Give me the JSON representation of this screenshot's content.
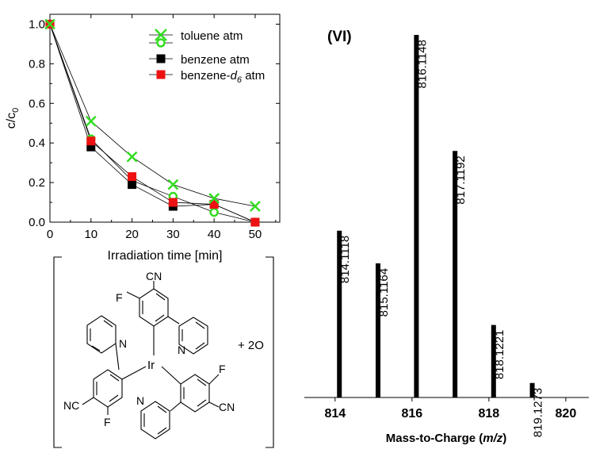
{
  "chart_data": [
    {
      "type": "line",
      "xlabel": "Irradiation time [min]",
      "ylabel": "c/c",
      "ylabel_sub": "0",
      "xlim": [
        0,
        56
      ],
      "ylim": [
        0,
        1.05
      ],
      "xticks": [
        0,
        10,
        20,
        30,
        40,
        50
      ],
      "yticks": [
        "0.0",
        "0.2",
        "0.4",
        "0.6",
        "0.8",
        "1.0"
      ],
      "x": [
        0,
        10,
        20,
        30,
        40,
        50
      ],
      "series": [
        {
          "name": "toluene atm",
          "marker": "x",
          "color": "#33dd22",
          "values": [
            1.0,
            0.51,
            0.33,
            0.19,
            0.12,
            0.08
          ]
        },
        {
          "name": "",
          "marker": "open-circle",
          "color": "#33dd22",
          "values": [
            1.0,
            0.42,
            0.21,
            0.13,
            0.05,
            0.0
          ]
        },
        {
          "name": "benzene atm",
          "marker": "square",
          "color": "#000000",
          "values": [
            1.0,
            0.38,
            0.19,
            0.08,
            0.09,
            0.0
          ]
        },
        {
          "name": "benzene-",
          "name_italic": "d",
          "name_sub": "6",
          "name_suffix": " atm",
          "marker": "square",
          "color": "#ee1111",
          "values": [
            1.0,
            0.41,
            0.23,
            0.1,
            0.09,
            0.0
          ]
        }
      ]
    },
    {
      "type": "bar",
      "title": "(VI)",
      "xlabel_prefix": "Mass-to-Charge (",
      "xlabel_italic": "m/z",
      "xlabel_suffix": ")",
      "xlim": [
        813.2,
        820.6
      ],
      "ylim": [
        0,
        100
      ],
      "xticks": [
        814,
        816,
        818,
        820
      ],
      "peaks": [
        {
          "mz": 814.1118,
          "label": "814.1118",
          "intensity": 46
        },
        {
          "mz": 815.1164,
          "label": "815.1164",
          "intensity": 37
        },
        {
          "mz": 816.1148,
          "label": "816.1148",
          "intensity": 100
        },
        {
          "mz": 817.1192,
          "label": "817.1192",
          "intensity": 68
        },
        {
          "mz": 818.1221,
          "label": "818.1221",
          "intensity": 20
        },
        {
          "mz": 819.1273,
          "label": "819.1273",
          "intensity": 4
        }
      ]
    }
  ],
  "structure": {
    "labels": {
      "cn_top": "CN",
      "f_top": "F",
      "n_top_ring": "N",
      "n_left_ring": "N",
      "ir": "Ir",
      "f_right": "F",
      "nc_left": "NC",
      "f_bottom": "F",
      "cn_right": "CN",
      "n_bottom_ring": "N",
      "plus": "+ 2O"
    }
  }
}
